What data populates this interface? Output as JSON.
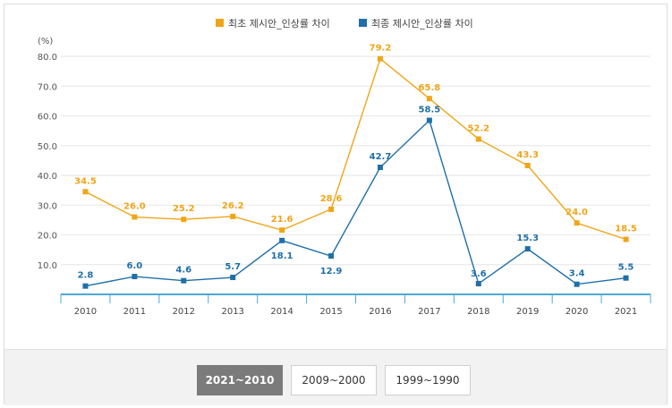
{
  "chart_data": {
    "type": "line",
    "x": [
      "2010",
      "2011",
      "2012",
      "2013",
      "2014",
      "2015",
      "2016",
      "2017",
      "2018",
      "2019",
      "2020",
      "2021"
    ],
    "series": [
      {
        "name": "최초 제시안_인상률 차이",
        "color": "#f0a518",
        "values": [
          34.5,
          26.0,
          25.2,
          26.2,
          21.6,
          28.6,
          79.2,
          65.8,
          52.2,
          43.3,
          24.0,
          18.5
        ],
        "labels": [
          "34.5",
          "26.0",
          "25.2",
          "26.2",
          "21.6",
          "28.6",
          "79.2",
          "65.8",
          "52.2",
          "43.3",
          "24.0",
          "18.5"
        ]
      },
      {
        "name": "최종 제시안_인상률 차이",
        "color": "#1f6fa8",
        "values": [
          2.8,
          6.0,
          4.6,
          5.7,
          18.1,
          12.9,
          42.7,
          58.5,
          3.6,
          15.3,
          3.4,
          5.5
        ],
        "labels": [
          "2.8",
          "6.0",
          "4.6",
          "5.7",
          "18.1",
          "12.9",
          "42.7",
          "58.5",
          "3.6",
          "15.3",
          "3.4",
          "5.5"
        ]
      }
    ],
    "yunit": "(%)",
    "yticks": [
      "10.0",
      "20.0",
      "30.0",
      "40.0",
      "50.0",
      "60.0",
      "70.0",
      "80.0"
    ],
    "ylim": [
      0,
      80
    ],
    "grid": true,
    "legend": "top-center"
  },
  "footer": {
    "buttons": [
      "2021~2010",
      "2009~2000",
      "1999~1990"
    ],
    "active": 0
  }
}
